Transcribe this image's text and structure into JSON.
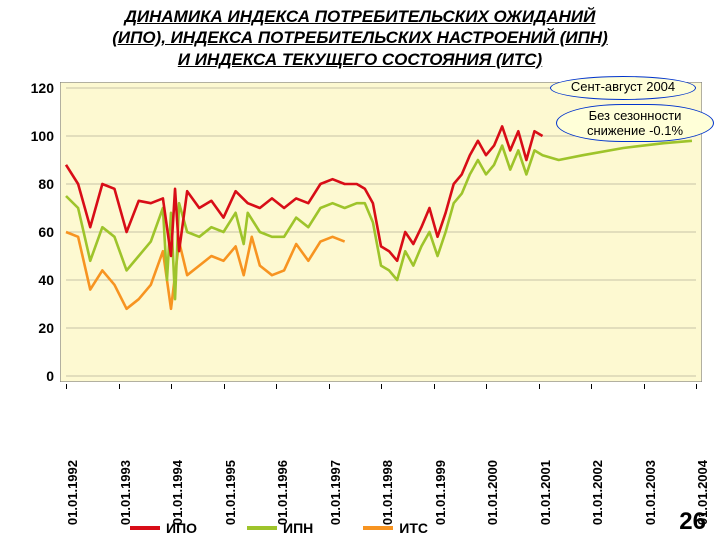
{
  "title_lines": [
    "ДИНАМИКА ИНДЕКСА ПОТРЕБИТЕЛЬСКИХ ОЖИДАНИЙ",
    "(ИПО), ИНДЕКСА ПОТРЕБИТЕЛЬСКИХ НАСТРОЕНИЙ (ИПН)",
    "И ИНДЕКСА ТЕКУЩЕГО СОСТОЯНИЯ (ИТС)"
  ],
  "page_number": "26",
  "callout1_text": "Сент-август 2004",
  "callout2_line1": "Без сезонности",
  "callout2_line2": "снижение -0.1%",
  "chart": {
    "type": "line",
    "background_color": "#fdf9d1",
    "plot_border_color": "#808080",
    "grid_color": "#c7c4a8",
    "ylim": [
      0,
      120
    ],
    "ytick_step": 20,
    "y_ticks": [
      0,
      20,
      40,
      60,
      80,
      100,
      120
    ],
    "x_labels": [
      "01.01.1992",
      "01.01.1993",
      "01.01.1994",
      "01.01.1995",
      "01.01.1996",
      "01.01.1997",
      "01.01.1998",
      "01.01.1999",
      "01.01.2000",
      "01.01.2001",
      "01.01.2002",
      "01.01.2003",
      "01.01.2004"
    ],
    "x_span_months": 156,
    "series": [
      {
        "name": "ИПО",
        "color": "#d80d17",
        "width": 2.6,
        "points": [
          [
            0,
            88
          ],
          [
            3,
            80
          ],
          [
            6,
            62
          ],
          [
            9,
            80
          ],
          [
            12,
            78
          ],
          [
            15,
            60
          ],
          [
            18,
            73
          ],
          [
            21,
            72
          ],
          [
            24,
            74
          ],
          [
            26,
            50
          ],
          [
            27,
            78
          ],
          [
            28,
            52
          ],
          [
            30,
            77
          ],
          [
            33,
            70
          ],
          [
            36,
            73
          ],
          [
            39,
            66
          ],
          [
            42,
            77
          ],
          [
            45,
            72
          ],
          [
            48,
            70
          ],
          [
            51,
            74
          ],
          [
            54,
            70
          ],
          [
            57,
            74
          ],
          [
            60,
            72
          ],
          [
            63,
            80
          ],
          [
            66,
            82
          ],
          [
            69,
            80
          ],
          [
            72,
            80
          ],
          [
            74,
            78
          ],
          [
            76,
            72
          ],
          [
            78,
            54
          ],
          [
            80,
            52
          ],
          [
            82,
            48
          ],
          [
            84,
            60
          ],
          [
            86,
            55
          ],
          [
            88,
            62
          ],
          [
            90,
            70
          ],
          [
            92,
            58
          ],
          [
            94,
            68
          ],
          [
            96,
            80
          ],
          [
            98,
            84
          ],
          [
            100,
            92
          ],
          [
            102,
            98
          ],
          [
            104,
            92
          ],
          [
            106,
            96
          ],
          [
            108,
            104
          ],
          [
            110,
            94
          ],
          [
            112,
            102
          ],
          [
            114,
            90
          ],
          [
            116,
            102
          ],
          [
            118,
            100
          ]
        ]
      },
      {
        "name": "ИПН",
        "color": "#9ec42b",
        "width": 2.6,
        "points": [
          [
            0,
            75
          ],
          [
            3,
            70
          ],
          [
            6,
            48
          ],
          [
            9,
            62
          ],
          [
            12,
            58
          ],
          [
            15,
            44
          ],
          [
            18,
            50
          ],
          [
            21,
            56
          ],
          [
            24,
            70
          ],
          [
            25,
            40
          ],
          [
            26,
            68
          ],
          [
            27,
            32
          ],
          [
            28,
            72
          ],
          [
            30,
            60
          ],
          [
            33,
            58
          ],
          [
            36,
            62
          ],
          [
            39,
            60
          ],
          [
            42,
            68
          ],
          [
            44,
            55
          ],
          [
            45,
            68
          ],
          [
            48,
            60
          ],
          [
            51,
            58
          ],
          [
            54,
            58
          ],
          [
            57,
            66
          ],
          [
            60,
            62
          ],
          [
            63,
            70
          ],
          [
            66,
            72
          ],
          [
            69,
            70
          ],
          [
            72,
            72
          ],
          [
            74,
            72
          ],
          [
            76,
            64
          ],
          [
            78,
            46
          ],
          [
            80,
            44
          ],
          [
            82,
            40
          ],
          [
            84,
            52
          ],
          [
            86,
            46
          ],
          [
            88,
            54
          ],
          [
            90,
            60
          ],
          [
            92,
            50
          ],
          [
            94,
            60
          ],
          [
            96,
            72
          ],
          [
            98,
            76
          ],
          [
            100,
            84
          ],
          [
            102,
            90
          ],
          [
            104,
            84
          ],
          [
            106,
            88
          ],
          [
            108,
            96
          ],
          [
            110,
            86
          ],
          [
            112,
            94
          ],
          [
            114,
            84
          ],
          [
            116,
            94
          ],
          [
            118,
            92
          ],
          [
            122,
            90
          ],
          [
            128,
            92
          ],
          [
            138,
            95
          ],
          [
            148,
            97
          ],
          [
            155,
            98
          ]
        ]
      },
      {
        "name": "ИТС",
        "color": "#f79421",
        "width": 2.6,
        "points": [
          [
            0,
            60
          ],
          [
            3,
            58
          ],
          [
            6,
            36
          ],
          [
            9,
            44
          ],
          [
            12,
            38
          ],
          [
            15,
            28
          ],
          [
            18,
            32
          ],
          [
            21,
            38
          ],
          [
            24,
            52
          ],
          [
            26,
            28
          ],
          [
            28,
            56
          ],
          [
            30,
            42
          ],
          [
            33,
            46
          ],
          [
            36,
            50
          ],
          [
            39,
            48
          ],
          [
            42,
            54
          ],
          [
            44,
            42
          ],
          [
            46,
            58
          ],
          [
            48,
            46
          ],
          [
            51,
            42
          ],
          [
            54,
            44
          ],
          [
            57,
            55
          ],
          [
            60,
            48
          ],
          [
            63,
            56
          ],
          [
            66,
            58
          ],
          [
            69,
            56
          ]
        ]
      }
    ]
  },
  "legend": {
    "items": [
      {
        "label": "ИПО",
        "color": "#d80d17"
      },
      {
        "label": "ИПН",
        "color": "#9ec42b"
      },
      {
        "label": "ИТС",
        "color": "#f79421"
      }
    ]
  }
}
